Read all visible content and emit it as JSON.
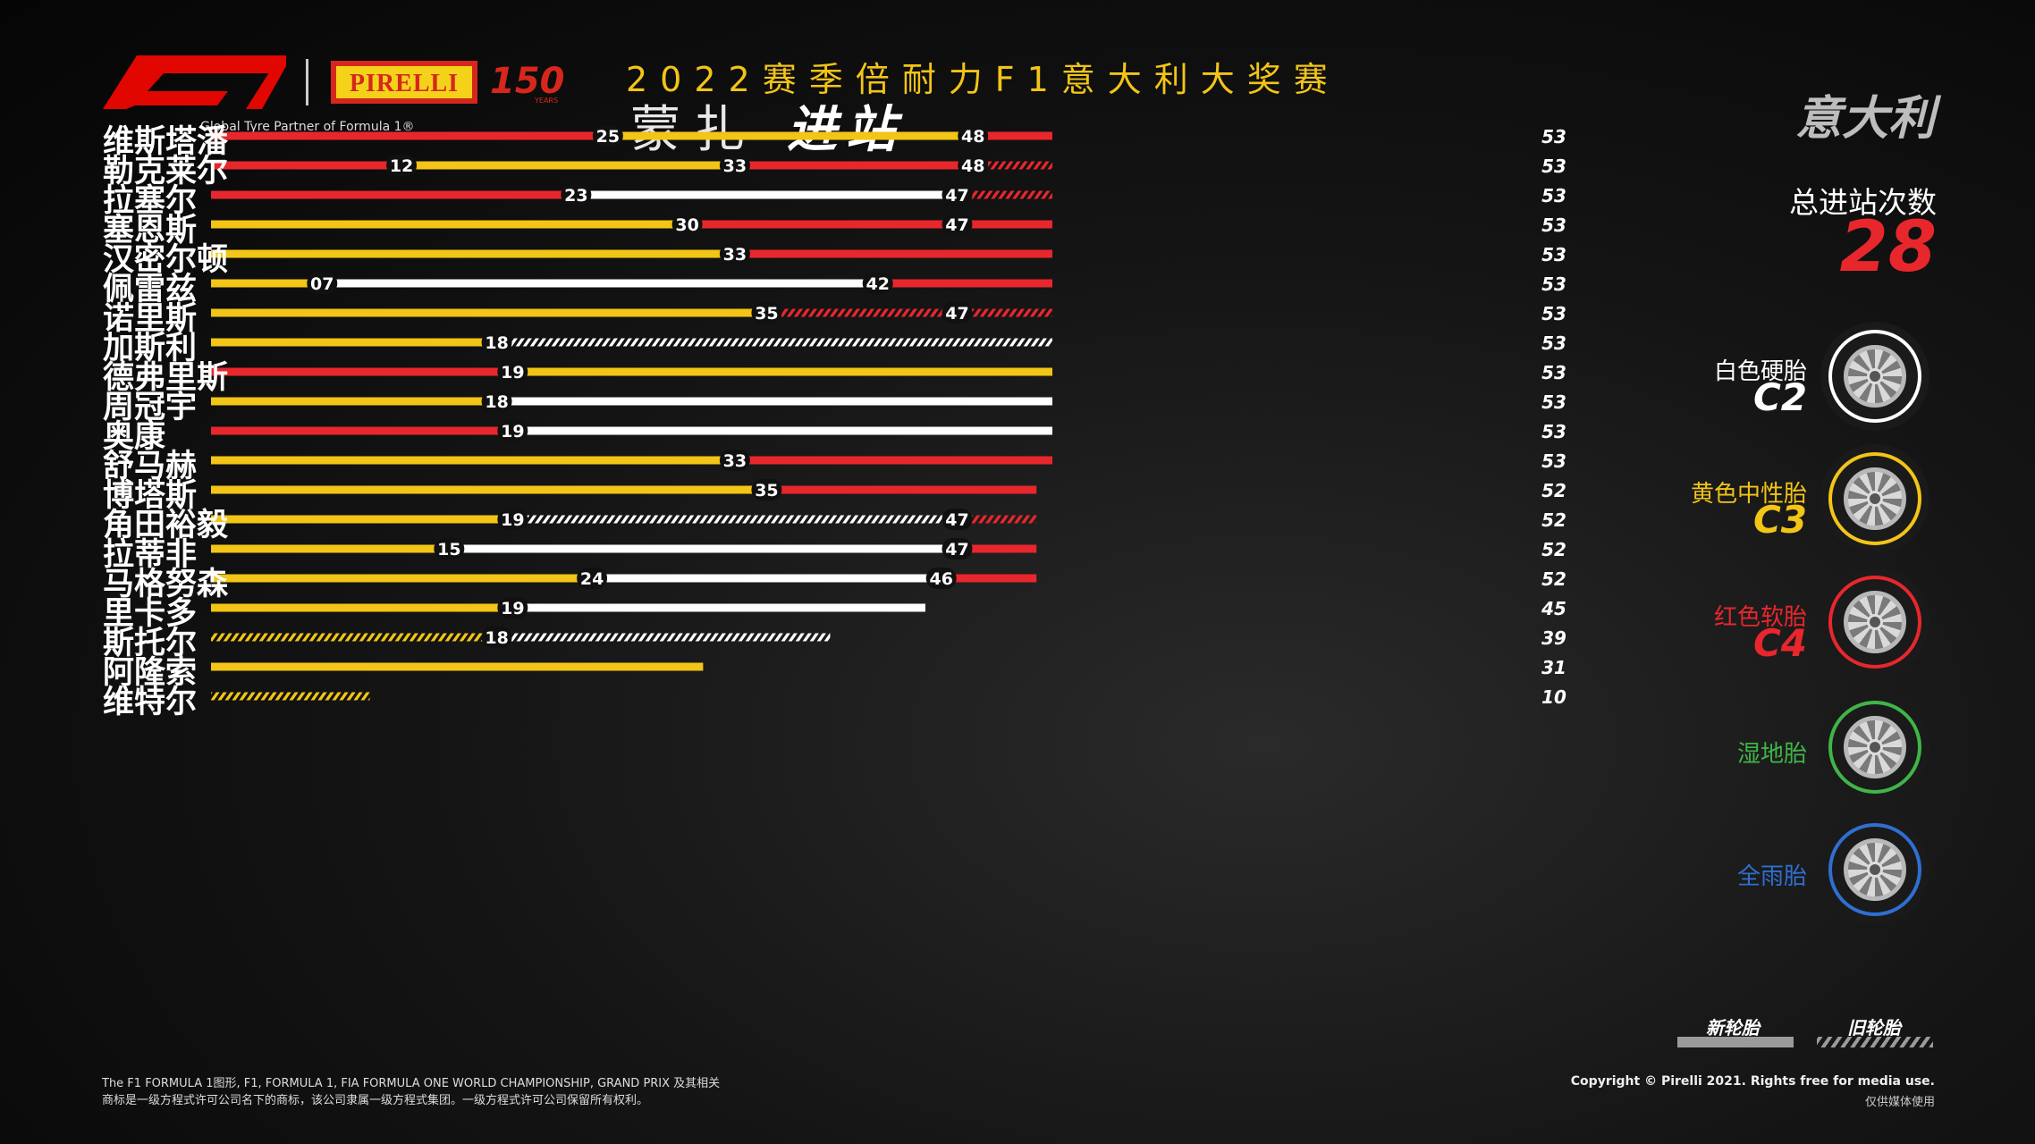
{
  "header": {
    "event": "2022赛季倍耐力F1意大利大奖赛",
    "venue": "蒙扎",
    "section": "进站",
    "country": "意大利",
    "partner": "Global Tyre Partner of Formula 1®",
    "pirelli": "PIRELLI",
    "pirelli_anniversary": "150",
    "pirelli_years": "YEARS"
  },
  "total": {
    "label": "总进站次数",
    "value": "28"
  },
  "tyres": [
    {
      "name": "白色硬胎",
      "code": "C2",
      "color": "#ffffff",
      "icon": "hard-tyre-icon"
    },
    {
      "name": "黄色中性胎",
      "code": "C3",
      "color": "#f2c516",
      "icon": "medium-tyre-icon"
    },
    {
      "name": "红色软胎",
      "code": "C4",
      "color": "#e8272c",
      "icon": "soft-tyre-icon"
    },
    {
      "name": "湿地胎",
      "code": "",
      "color": "#3fb548",
      "icon": "wet-tyre-icon"
    },
    {
      "name": "全雨胎",
      "code": "",
      "color": "#2f6fd1",
      "icon": "full-wet-tyre-icon"
    }
  ],
  "legend": {
    "new": "新轮胎",
    "used": "旧轮胎"
  },
  "footer": {
    "footnote_1": "The F1 FORMULA 1图形, F1, FORMULA 1, FIA FORMULA ONE WORLD CHAMPIONSHIP, GRAND PRIX 及其相关",
    "footnote_2": "商标是一级方程式许可公司名下的商标，该公司隶属一级方程式集团。一级方程式许可公司保留所有权利。",
    "copyright_1": "Copyright © Pirelli 2021. Rights free for media use.",
    "copyright_2": "仅供媒体使用"
  },
  "colors": {
    "soft": "#e8272c",
    "medium": "#f2c516",
    "hard": "#ffffff"
  },
  "chart_data": {
    "type": "bar",
    "orientation": "horizontal-stacked-stints",
    "x_unit": "laps",
    "xlim": [
      0,
      53
    ],
    "drivers": [
      {
        "name": "维斯塔潘",
        "total": "53",
        "stints": [
          {
            "compound": "soft",
            "used": false,
            "end": 25,
            "label": "25"
          },
          {
            "compound": "medium",
            "used": false,
            "end": 48,
            "label": "48"
          },
          {
            "compound": "soft",
            "used": false,
            "end": 53,
            "label": ""
          }
        ]
      },
      {
        "name": "勒克莱尔",
        "total": "53",
        "stints": [
          {
            "compound": "soft",
            "used": false,
            "end": 12,
            "label": "12"
          },
          {
            "compound": "medium",
            "used": false,
            "end": 33,
            "label": "33"
          },
          {
            "compound": "soft",
            "used": false,
            "end": 48,
            "label": "48"
          },
          {
            "compound": "soft",
            "used": true,
            "end": 53,
            "label": ""
          }
        ]
      },
      {
        "name": "拉塞尔",
        "total": "53",
        "stints": [
          {
            "compound": "soft",
            "used": false,
            "end": 23,
            "label": "23"
          },
          {
            "compound": "hard",
            "used": false,
            "end": 47,
            "label": "47"
          },
          {
            "compound": "soft",
            "used": true,
            "end": 53,
            "label": ""
          }
        ]
      },
      {
        "name": "塞恩斯",
        "total": "53",
        "stints": [
          {
            "compound": "medium",
            "used": false,
            "end": 30,
            "label": "30"
          },
          {
            "compound": "soft",
            "used": false,
            "end": 47,
            "label": "47"
          },
          {
            "compound": "soft",
            "used": false,
            "end": 53,
            "label": ""
          }
        ]
      },
      {
        "name": "汉密尔顿",
        "total": "53",
        "stints": [
          {
            "compound": "medium",
            "used": false,
            "end": 33,
            "label": "33"
          },
          {
            "compound": "soft",
            "used": false,
            "end": 53,
            "label": ""
          }
        ]
      },
      {
        "name": "佩雷兹",
        "total": "53",
        "stints": [
          {
            "compound": "medium",
            "used": false,
            "end": 7,
            "label": "07"
          },
          {
            "compound": "hard",
            "used": false,
            "end": 42,
            "label": "42"
          },
          {
            "compound": "soft",
            "used": false,
            "end": 53,
            "label": ""
          }
        ]
      },
      {
        "name": "诺里斯",
        "total": "53",
        "stints": [
          {
            "compound": "medium",
            "used": false,
            "end": 35,
            "label": "35"
          },
          {
            "compound": "soft",
            "used": true,
            "end": 47,
            "label": "47"
          },
          {
            "compound": "soft",
            "used": true,
            "end": 53,
            "label": ""
          }
        ]
      },
      {
        "name": "加斯利",
        "total": "53",
        "stints": [
          {
            "compound": "medium",
            "used": false,
            "end": 18,
            "label": "18"
          },
          {
            "compound": "hard",
            "used": true,
            "end": 53,
            "label": ""
          }
        ]
      },
      {
        "name": "德弗里斯",
        "total": "53",
        "stints": [
          {
            "compound": "soft",
            "used": false,
            "end": 19,
            "label": "19"
          },
          {
            "compound": "medium",
            "used": false,
            "end": 53,
            "label": ""
          }
        ]
      },
      {
        "name": "周冠宇",
        "total": "53",
        "stints": [
          {
            "compound": "medium",
            "used": false,
            "end": 18,
            "label": "18"
          },
          {
            "compound": "hard",
            "used": false,
            "end": 53,
            "label": ""
          }
        ]
      },
      {
        "name": "奥康",
        "total": "53",
        "stints": [
          {
            "compound": "soft",
            "used": false,
            "end": 19,
            "label": "19"
          },
          {
            "compound": "hard",
            "used": false,
            "end": 53,
            "label": ""
          }
        ]
      },
      {
        "name": "舒马赫",
        "total": "53",
        "stints": [
          {
            "compound": "medium",
            "used": false,
            "end": 33,
            "label": "33"
          },
          {
            "compound": "soft",
            "used": false,
            "end": 53,
            "label": ""
          }
        ]
      },
      {
        "name": "博塔斯",
        "total": "52",
        "stints": [
          {
            "compound": "medium",
            "used": false,
            "end": 35,
            "label": "35"
          },
          {
            "compound": "soft",
            "used": false,
            "end": 52,
            "label": ""
          }
        ]
      },
      {
        "name": "角田裕毅",
        "total": "52",
        "stints": [
          {
            "compound": "medium",
            "used": false,
            "end": 19,
            "label": "19"
          },
          {
            "compound": "hard",
            "used": true,
            "end": 47,
            "label": "47"
          },
          {
            "compound": "soft",
            "used": true,
            "end": 52,
            "label": ""
          }
        ]
      },
      {
        "name": "拉蒂非",
        "total": "52",
        "stints": [
          {
            "compound": "medium",
            "used": false,
            "end": 15,
            "label": "15"
          },
          {
            "compound": "hard",
            "used": false,
            "end": 47,
            "label": "47"
          },
          {
            "compound": "soft",
            "used": false,
            "end": 52,
            "label": ""
          }
        ]
      },
      {
        "name": "马格努森",
        "total": "52",
        "stints": [
          {
            "compound": "medium",
            "used": false,
            "end": 24,
            "label": "24"
          },
          {
            "compound": "hard",
            "used": false,
            "end": 46,
            "label": "46"
          },
          {
            "compound": "soft",
            "used": false,
            "end": 52,
            "label": ""
          }
        ]
      },
      {
        "name": "里卡多",
        "total": "45",
        "stints": [
          {
            "compound": "medium",
            "used": false,
            "end": 19,
            "label": "19"
          },
          {
            "compound": "hard",
            "used": false,
            "end": 45,
            "label": ""
          }
        ]
      },
      {
        "name": "斯托尔",
        "total": "39",
        "stints": [
          {
            "compound": "medium",
            "used": true,
            "end": 18,
            "label": "18"
          },
          {
            "compound": "hard",
            "used": true,
            "end": 39,
            "label": ""
          }
        ]
      },
      {
        "name": "阿隆索",
        "total": "31",
        "stints": [
          {
            "compound": "medium",
            "used": false,
            "end": 31,
            "label": ""
          }
        ]
      },
      {
        "name": "维特尔",
        "total": "10",
        "stints": [
          {
            "compound": "medium",
            "used": true,
            "end": 10,
            "label": ""
          }
        ]
      }
    ]
  }
}
